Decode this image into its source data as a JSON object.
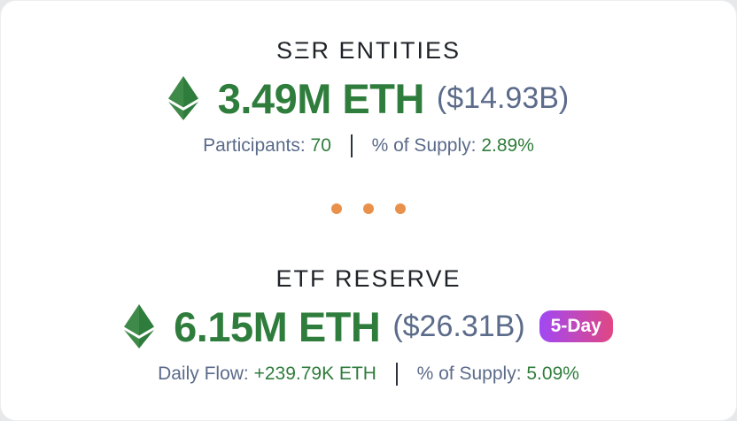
{
  "colors": {
    "positive": "#2f7d3c",
    "muted": "#5b6b8a",
    "dot": "#e9904a",
    "badge_from": "#a148f4",
    "badge_to": "#e04783"
  },
  "entities": {
    "icon": "ethereum-icon",
    "heading": "SΞR ENTITIES",
    "amount": "3.49M ETH",
    "usd": "($14.93B)",
    "participants_label": "Participants:",
    "participants_value": "70",
    "supply_label": "% of Supply:",
    "supply_value": "2.89%"
  },
  "etf": {
    "icon": "ethereum-icon",
    "heading": "ETF RESERVE",
    "amount": "6.15M ETH",
    "usd": "($26.31B)",
    "badge": "5-Day",
    "flow_label": "Daily Flow:",
    "flow_value": "+239.79K ETH",
    "supply_label": "% of Supply:",
    "supply_value": "5.09%"
  }
}
